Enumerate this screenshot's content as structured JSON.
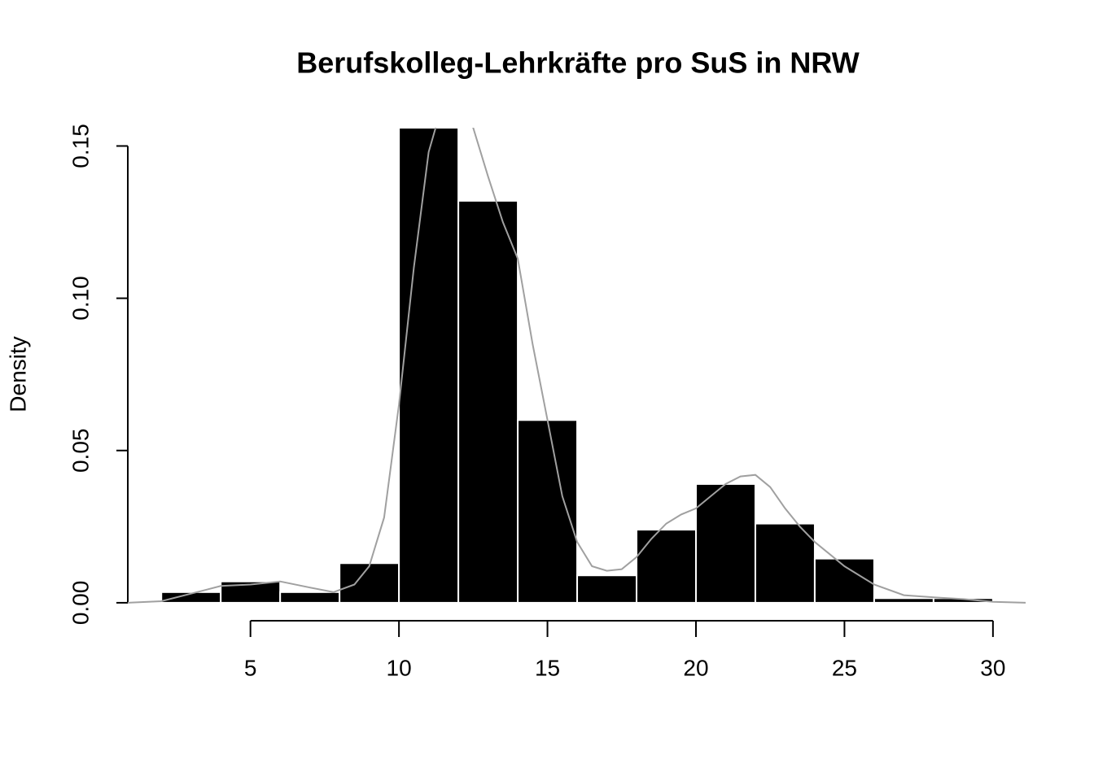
{
  "chart_data": {
    "type": "histogram",
    "title": "Berufskolleg-Lehrkräfte pro SuS in NRW",
    "ylabel": "Density",
    "bins": [
      2,
      4,
      6,
      8,
      10,
      12,
      14,
      16,
      18,
      20,
      22,
      24,
      26,
      28,
      30
    ],
    "values": [
      0.0035,
      0.007,
      0.0035,
      0.013,
      0.156,
      0.132,
      0.06,
      0.009,
      0.024,
      0.039,
      0.026,
      0.0145,
      0.0015,
      0.0015
    ],
    "color": "#000000",
    "density": {
      "color": "#a0a0a0",
      "x": [
        0.87,
        2,
        3,
        4,
        5,
        6,
        7,
        7.8,
        8.5,
        9,
        9.5,
        10,
        10.5,
        11,
        11.5,
        12,
        12.5,
        13,
        13.5,
        14,
        14.5,
        15,
        15.5,
        16,
        16.5,
        17,
        17.5,
        18,
        18.5,
        19,
        19.5,
        20,
        20.5,
        21,
        21.5,
        22,
        22.5,
        23,
        23.5,
        24,
        25,
        26,
        27,
        28,
        29,
        30,
        31.1
      ],
      "y": [
        0,
        0.0005,
        0.003,
        0.0055,
        0.006,
        0.007,
        0.005,
        0.0035,
        0.006,
        0.012,
        0.028,
        0.065,
        0.11,
        0.148,
        0.165,
        0.17,
        0.156,
        0.14,
        0.125,
        0.113,
        0.085,
        0.06,
        0.035,
        0.02,
        0.012,
        0.0105,
        0.011,
        0.015,
        0.021,
        0.026,
        0.029,
        0.031,
        0.035,
        0.039,
        0.0415,
        0.042,
        0.038,
        0.031,
        0.025,
        0.02,
        0.012,
        0.006,
        0.0025,
        0.0018,
        0.0012,
        0.0003,
        0
      ]
    },
    "xlim": [
      0.87,
      31.1
    ],
    "ylim": [
      -0.0059,
      0.156
    ],
    "xticks": [
      5,
      10,
      15,
      20,
      25,
      30
    ],
    "yticks": [
      {
        "value": 0,
        "label": "0.00"
      },
      {
        "value": 0.05,
        "label": "0.05"
      },
      {
        "value": 0.1,
        "label": "0.10"
      },
      {
        "value": 0.15,
        "label": "0.15"
      }
    ]
  }
}
